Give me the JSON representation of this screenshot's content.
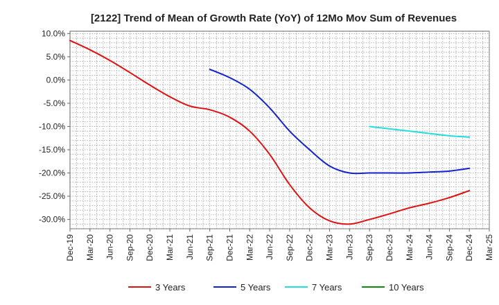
{
  "chart_data": {
    "type": "line",
    "title": "[2122]  Trend of Mean of Growth Rate (YoY) of 12Mo Mov Sum of Revenues",
    "xlabel": "",
    "ylabel": "",
    "ylim": [
      -32,
      10.5
    ],
    "yticks": [
      10,
      5,
      0,
      -5,
      -10,
      -15,
      -20,
      -25,
      -30
    ],
    "ytick_labels": [
      "10.0%",
      "5.0%",
      "0.0%",
      "-5.0%",
      "-10.0%",
      "-15.0%",
      "-20.0%",
      "-25.0%",
      "-30.0%"
    ],
    "x_categories": [
      "Dec-19",
      "Mar-20",
      "Jun-20",
      "Sep-20",
      "Dec-20",
      "Mar-21",
      "Jun-21",
      "Sep-21",
      "Dec-21",
      "Mar-22",
      "Jun-22",
      "Sep-22",
      "Dec-22",
      "Mar-23",
      "Jun-23",
      "Sep-23",
      "Dec-23",
      "Mar-24",
      "Jun-24",
      "Sep-24",
      "Dec-24",
      "Mar-25"
    ],
    "grid": true,
    "legend_position": "bottom",
    "series": [
      {
        "name": "3 Years",
        "color": "#dd1111",
        "points": [
          [
            0,
            8.5
          ],
          [
            1,
            6.5
          ],
          [
            2,
            4.2
          ],
          [
            3,
            1.6
          ],
          [
            4,
            -1.1
          ],
          [
            5,
            -3.6
          ],
          [
            6,
            -5.6
          ],
          [
            7,
            -6.4
          ],
          [
            8,
            -8.0
          ],
          [
            9,
            -11.0
          ],
          [
            10,
            -16.0
          ],
          [
            11,
            -22.5
          ],
          [
            12,
            -27.5
          ],
          [
            13,
            -30.3
          ],
          [
            14,
            -31.0
          ],
          [
            15,
            -30.0
          ],
          [
            16,
            -28.8
          ],
          [
            17,
            -27.5
          ],
          [
            18,
            -26.5
          ],
          [
            19,
            -25.3
          ],
          [
            20,
            -23.8
          ]
        ]
      },
      {
        "name": "5 Years",
        "color": "#1122cc",
        "points": [
          [
            7,
            2.3
          ],
          [
            8,
            0.5
          ],
          [
            9,
            -2.0
          ],
          [
            10,
            -6.0
          ],
          [
            11,
            -11.0
          ],
          [
            12,
            -15.0
          ],
          [
            13,
            -18.5
          ],
          [
            14,
            -20.0
          ],
          [
            15,
            -20.0
          ],
          [
            16,
            -20.0
          ],
          [
            17,
            -20.0
          ],
          [
            18,
            -19.8
          ],
          [
            19,
            -19.6
          ],
          [
            20,
            -19.0
          ]
        ]
      },
      {
        "name": "7 Years",
        "color": "#22dddd",
        "points": [
          [
            15,
            -10.0
          ],
          [
            16,
            -10.5
          ],
          [
            17,
            -11.0
          ],
          [
            18,
            -11.5
          ],
          [
            19,
            -12.0
          ],
          [
            20,
            -12.3
          ]
        ]
      },
      {
        "name": "10 Years",
        "color": "#118811",
        "points": []
      }
    ]
  }
}
